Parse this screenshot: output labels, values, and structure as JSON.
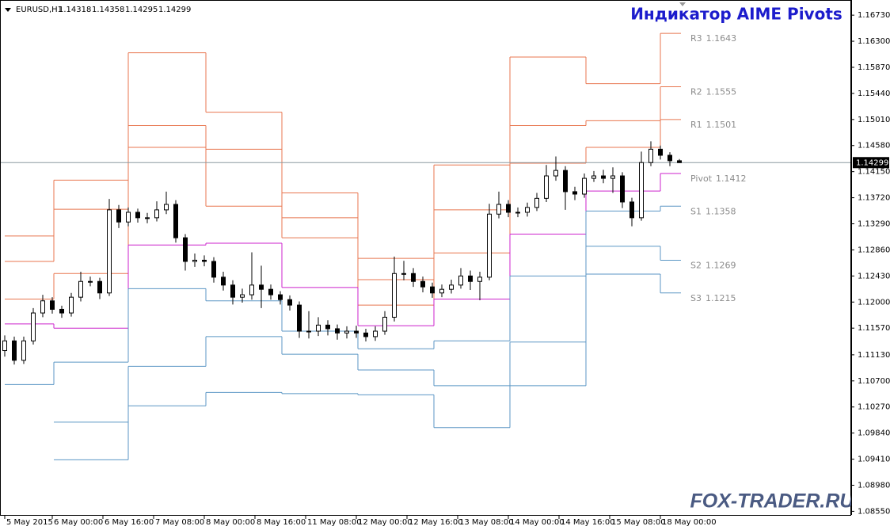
{
  "chart_data": {
    "type": "candlestick",
    "title": "Индикатор AIME Pivots",
    "watermark": "FOX-TRADER.RU",
    "symbol": "EURUSD,H1",
    "ohlc": [
      1.14318,
      1.14358,
      1.14295,
      1.14299
    ],
    "last_price": 1.14299,
    "xlim": [
      -1.5,
      267.25
    ],
    "ylim": [
      1.0849,
      1.1698
    ],
    "yticks": [
      {
        "value": 1.1673,
        "label": "1.16730"
      },
      {
        "value": 1.163,
        "label": "1.16300"
      },
      {
        "value": 1.1587,
        "label": "1.15870"
      },
      {
        "value": 1.1544,
        "label": "1.15440"
      },
      {
        "value": 1.1501,
        "label": "1.15010"
      },
      {
        "value": 1.1458,
        "label": "1.14580"
      },
      {
        "value": 1.1415,
        "label": "1.14150"
      },
      {
        "value": 1.1372,
        "label": "1.13720"
      },
      {
        "value": 1.1329,
        "label": "1.13290"
      },
      {
        "value": 1.1286,
        "label": "1.12860"
      },
      {
        "value": 1.1243,
        "label": "1.12430"
      },
      {
        "value": 1.12,
        "label": "1.12000"
      },
      {
        "value": 1.1157,
        "label": "1.11570"
      },
      {
        "value": 1.1113,
        "label": "1.11130"
      },
      {
        "value": 1.107,
        "label": "1.10700"
      },
      {
        "value": 1.1027,
        "label": "1.10270"
      },
      {
        "value": 1.0984,
        "label": "1.09840"
      },
      {
        "value": 1.0941,
        "label": "1.09410"
      },
      {
        "value": 1.0898,
        "label": "1.08980"
      },
      {
        "value": 1.0855,
        "label": "1.08550"
      }
    ],
    "xticks": [
      {
        "value": 0,
        "label": "5 May 2015"
      },
      {
        "value": 15,
        "label": "6 May 00:00"
      },
      {
        "value": 31,
        "label": "6 May 16:00"
      },
      {
        "value": 47,
        "label": "7 May 08:00"
      },
      {
        "value": 63,
        "label": "8 May 00:00"
      },
      {
        "value": 79,
        "label": "8 May 16:00"
      },
      {
        "value": 95,
        "label": "11 May 08:00"
      },
      {
        "value": 111,
        "label": "12 May 00:00"
      },
      {
        "value": 127,
        "label": "12 May 16:00"
      },
      {
        "value": 143,
        "label": "13 May 08:00"
      },
      {
        "value": 159,
        "label": "14 May 00:00"
      },
      {
        "value": 175,
        "label": "14 May 16:00"
      },
      {
        "value": 191,
        "label": "15 May 08:00"
      },
      {
        "value": 207,
        "label": "18 May 00:00"
      }
    ],
    "candles": {
      "x": [
        0,
        3,
        6,
        9,
        12,
        15,
        18,
        21,
        24,
        27,
        30,
        33,
        36,
        39,
        42,
        45,
        48,
        51,
        54,
        57,
        60,
        63,
        66,
        69,
        72,
        75,
        78,
        81,
        84,
        87,
        90,
        93,
        96,
        99,
        102,
        105,
        108,
        111,
        114,
        117,
        120,
        123,
        126,
        129,
        132,
        135,
        138,
        141,
        144,
        147,
        150,
        153,
        156,
        159,
        162,
        165,
        168,
        171,
        174,
        177,
        180,
        183,
        186,
        189,
        192,
        195,
        198,
        201,
        204,
        207,
        210,
        213
      ],
      "open": [
        1.112,
        1.1136,
        1.1104,
        1.1136,
        1.1182,
        1.1202,
        1.1188,
        1.1182,
        1.1208,
        1.1234,
        1.1234,
        1.1215,
        1.1352,
        1.1332,
        1.1348,
        1.1339,
        1.1339,
        1.1352,
        1.1361,
        1.1306,
        1.1267,
        1.1269,
        1.1267,
        1.1241,
        1.1228,
        1.1208,
        1.1212,
        1.1228,
        1.1221,
        1.1212,
        1.1204,
        1.1195,
        1.1152,
        1.1152,
        1.1162,
        1.1156,
        1.1149,
        1.1152,
        1.1149,
        1.1143,
        1.1152,
        1.1175,
        1.1247,
        1.1247,
        1.1234,
        1.1225,
        1.1215,
        1.1221,
        1.1228,
        1.1243,
        1.1234,
        1.1241,
        1.1345,
        1.1361,
        1.1348,
        1.1348,
        1.1356,
        1.1371,
        1.1408,
        1.1417,
        1.1382,
        1.1378,
        1.1404,
        1.1408,
        1.1404,
        1.1408,
        1.1365,
        1.1339,
        1.143,
        1.1452,
        1.1442,
        1.1433
      ],
      "high": [
        1.1145,
        1.1143,
        1.1143,
        1.119,
        1.1212,
        1.1208,
        1.1194,
        1.1215,
        1.125,
        1.1242,
        1.124,
        1.137,
        1.136,
        1.1356,
        1.1354,
        1.1347,
        1.1366,
        1.1382,
        1.1368,
        1.1312,
        1.128,
        1.1277,
        1.1274,
        1.125,
        1.1236,
        1.1222,
        1.1282,
        1.126,
        1.1229,
        1.1218,
        1.1211,
        1.1201,
        1.1185,
        1.1175,
        1.117,
        1.1163,
        1.116,
        1.1161,
        1.1156,
        1.116,
        1.1185,
        1.1275,
        1.1268,
        1.1256,
        1.1242,
        1.1232,
        1.1229,
        1.1237,
        1.1256,
        1.1252,
        1.125,
        1.1362,
        1.1382,
        1.1368,
        1.1356,
        1.1364,
        1.138,
        1.1426,
        1.144,
        1.1424,
        1.139,
        1.1412,
        1.1416,
        1.1418,
        1.1422,
        1.1414,
        1.1372,
        1.1448,
        1.1465,
        1.1458,
        1.1447,
        1.14358
      ],
      "low": [
        1.111,
        1.1097,
        1.1098,
        1.113,
        1.1175,
        1.1181,
        1.1174,
        1.1176,
        1.1201,
        1.1226,
        1.1205,
        1.121,
        1.1322,
        1.1325,
        1.1331,
        1.133,
        1.1333,
        1.1345,
        1.1298,
        1.1252,
        1.1258,
        1.1259,
        1.1232,
        1.1219,
        1.1196,
        1.1199,
        1.1204,
        1.119,
        1.1204,
        1.1196,
        1.1186,
        1.1141,
        1.114,
        1.1144,
        1.1145,
        1.1138,
        1.114,
        1.1141,
        1.1135,
        1.1136,
        1.1146,
        1.1168,
        1.1236,
        1.1225,
        1.1216,
        1.1207,
        1.1208,
        1.1214,
        1.1222,
        1.122,
        1.1203,
        1.1236,
        1.1338,
        1.134,
        1.134,
        1.1341,
        1.135,
        1.1365,
        1.14,
        1.1352,
        1.1368,
        1.1372,
        1.1398,
        1.1396,
        1.138,
        1.1355,
        1.1325,
        1.1334,
        1.1424,
        1.1435,
        1.1424,
        1.14295
      ],
      "close": [
        1.1136,
        1.1104,
        1.1136,
        1.1182,
        1.1202,
        1.1188,
        1.1182,
        1.1208,
        1.1234,
        1.1234,
        1.1215,
        1.1352,
        1.1332,
        1.1348,
        1.1339,
        1.1339,
        1.1352,
        1.1361,
        1.1306,
        1.1267,
        1.1269,
        1.1267,
        1.1241,
        1.1228,
        1.1208,
        1.1212,
        1.1228,
        1.1221,
        1.1212,
        1.1204,
        1.1195,
        1.1152,
        1.1152,
        1.1162,
        1.1156,
        1.1149,
        1.1152,
        1.1149,
        1.1143,
        1.1152,
        1.1175,
        1.1247,
        1.1247,
        1.1234,
        1.1225,
        1.1215,
        1.1221,
        1.1228,
        1.1243,
        1.1234,
        1.1241,
        1.1345,
        1.1361,
        1.1348,
        1.1348,
        1.1356,
        1.1371,
        1.1408,
        1.1417,
        1.1382,
        1.1378,
        1.1404,
        1.1408,
        1.1404,
        1.1408,
        1.1365,
        1.1339,
        1.143,
        1.1452,
        1.1442,
        1.1433,
        1.14299
      ]
    },
    "steps_x": [
      0,
      15.5,
      39,
      63.5,
      87.5,
      111.5,
      135.5,
      159.5,
      183.5,
      207,
      213.5
    ],
    "series": [
      {
        "name": "R3",
        "color": "#e8764f",
        "values": [
          1.1309,
          1.1401,
          1.1611,
          1.1513,
          1.138,
          1.1272,
          1.1426,
          1.1604,
          1.156,
          1.1643
        ]
      },
      {
        "name": "R2",
        "color": "#e8764f",
        "values": [
          1.1267,
          1.1353,
          1.1491,
          1.1452,
          1.1339,
          1.1237,
          1.1352,
          1.1491,
          1.1499,
          1.1555
        ]
      },
      {
        "name": "R1",
        "color": "#e8764f",
        "values": [
          1.1205,
          1.1247,
          1.1455,
          1.1358,
          1.1306,
          1.1195,
          1.1281,
          1.1429,
          1.1455,
          1.1501
        ]
      },
      {
        "name": "Pivot",
        "color": "#cc22cc",
        "values": [
          1.1164,
          1.1157,
          1.1294,
          1.1297,
          1.1224,
          1.1161,
          1.1205,
          1.1312,
          1.1383,
          1.1412
        ]
      },
      {
        "name": "S1",
        "color": "#5b96c4",
        "values": [
          1.1064,
          1.1101,
          1.1222,
          1.1202,
          1.1152,
          1.1123,
          1.1136,
          1.1243,
          1.135,
          1.1358
        ]
      },
      {
        "name": "S2",
        "color": "#5b96c4",
        "values": [
          null,
          1.1002,
          1.1094,
          1.1143,
          1.1114,
          1.1088,
          1.1062,
          1.1134,
          1.1292,
          1.1269
        ]
      },
      {
        "name": "S3",
        "color": "#5b96c4",
        "values": [
          null,
          1.094,
          1.1029,
          1.1051,
          1.1049,
          1.1047,
          1.0993,
          1.1062,
          1.1246,
          1.1215
        ]
      }
    ]
  }
}
